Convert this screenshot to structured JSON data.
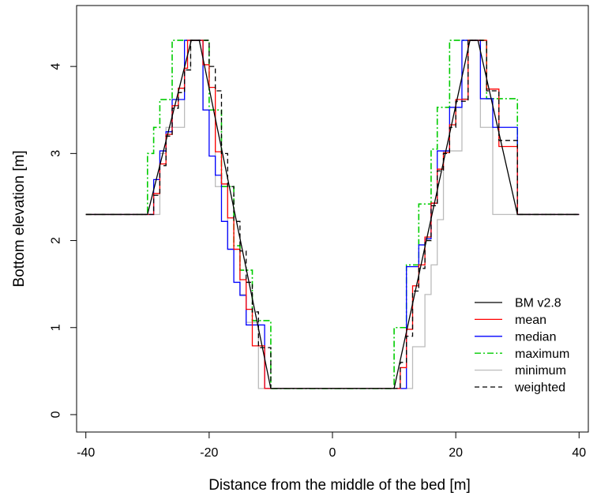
{
  "chart_data": {
    "type": "line",
    "title": "",
    "xlabel": "Distance from the middle of the bed [m]",
    "ylabel": "Bottom elevation  [m]",
    "xlim": [
      -41.5,
      41.5
    ],
    "ylim": [
      -0.2,
      4.7
    ],
    "x_ticks": [
      -40,
      -20,
      0,
      20,
      40
    ],
    "y_ticks": [
      0,
      1,
      2,
      3,
      4
    ],
    "x_tick_labels": [
      "-40",
      "-20",
      "0",
      "20",
      "40"
    ],
    "y_tick_labels": [
      "0",
      "1",
      "2",
      "3",
      "4"
    ],
    "grid": false,
    "legend_position": "bottom-right",
    "series": [
      {
        "name": "BM v2.8",
        "color": "#000000",
        "dash": "solid",
        "step": false,
        "x": [
          -40,
          -30,
          -22.9,
          -21.6,
          -10,
          10,
          22.3,
          23.6,
          30,
          40
        ],
        "y": [
          2.3,
          2.3,
          4.3,
          4.3,
          0.3,
          0.3,
          4.3,
          4.3,
          2.3,
          2.3
        ]
      },
      {
        "name": "mean",
        "color": "#ff0000",
        "dash": "solid",
        "step": true,
        "x": [
          -40,
          -30,
          -29,
          -28,
          -27,
          -26,
          -25,
          -24,
          -23.5,
          -22,
          -21.5,
          -21,
          -20,
          -19,
          -18,
          -17,
          -16,
          -15,
          -14,
          -13,
          -12,
          -11,
          -10,
          10,
          11,
          12,
          13,
          14,
          15,
          16,
          17,
          18,
          19,
          20,
          21,
          22,
          23,
          24,
          25,
          26,
          27,
          28,
          30,
          40
        ],
        "y": [
          2.3,
          2.3,
          2.54,
          2.88,
          3.22,
          3.55,
          3.75,
          3.98,
          4.3,
          4.3,
          4.3,
          4.02,
          3.76,
          3.02,
          2.65,
          2.26,
          1.9,
          1.55,
          1.21,
          0.79,
          0.79,
          0.3,
          0.3,
          0.3,
          0.54,
          0.98,
          1.48,
          1.72,
          2.04,
          2.43,
          2.82,
          3.01,
          3.33,
          3.62,
          3.62,
          4.3,
          4.3,
          4.3,
          3.74,
          3.74,
          3.08,
          3.08,
          2.3,
          2.3
        ]
      },
      {
        "name": "median",
        "color": "#0000ff",
        "dash": "solid",
        "step": true,
        "x": [
          -40,
          -30,
          -29,
          -28,
          -27,
          -26,
          -25,
          -24,
          -23,
          -22,
          -21,
          -20,
          -19,
          -18,
          -17,
          -16,
          -15,
          -14,
          -13,
          -12,
          -11,
          -10,
          10,
          11,
          12,
          13,
          14,
          15,
          16,
          17,
          18,
          19,
          20,
          21,
          22,
          23,
          24,
          25,
          26,
          27,
          28,
          30,
          40
        ],
        "y": [
          2.3,
          2.3,
          2.7,
          3.03,
          3.25,
          3.62,
          3.62,
          4.3,
          4.3,
          4.3,
          3.5,
          2.97,
          2.75,
          2.22,
          1.9,
          1.52,
          1.37,
          1.03,
          1.03,
          1.03,
          0.3,
          0.3,
          0.3,
          0.3,
          1.7,
          1.7,
          1.95,
          2.02,
          2.43,
          3.03,
          3.03,
          3.53,
          3.53,
          4.3,
          4.3,
          4.3,
          3.63,
          3.63,
          3.3,
          3.3,
          3.3,
          2.3,
          2.3
        ]
      },
      {
        "name": "maximum",
        "color": "#00cc00",
        "dash": "dashdot",
        "step": true,
        "x": [
          -40,
          -30,
          -29,
          -28,
          -27,
          -26,
          -25,
          -24,
          -23,
          -22,
          -21,
          -20,
          -19,
          -18,
          -17,
          -16,
          -15,
          -14,
          -13,
          -12,
          -11,
          -10,
          10,
          11,
          12,
          13,
          14,
          15,
          16,
          17,
          18,
          19,
          20,
          21,
          22,
          23,
          24,
          25,
          26,
          27,
          28,
          30,
          40
        ],
        "y": [
          2.3,
          3.0,
          3.3,
          3.62,
          3.62,
          4.3,
          4.3,
          4.3,
          4.3,
          4.3,
          4.3,
          3.5,
          3.5,
          2.62,
          2.62,
          1.94,
          1.66,
          1.66,
          1.08,
          1.08,
          1.08,
          0.3,
          1.0,
          1.0,
          1.72,
          1.72,
          2.42,
          2.42,
          3.05,
          3.53,
          3.53,
          4.3,
          4.3,
          4.3,
          4.3,
          4.3,
          4.3,
          3.63,
          3.63,
          3.63,
          3.63,
          2.3,
          2.3
        ]
      },
      {
        "name": "minimum",
        "color": "#bbbbbb",
        "dash": "solid",
        "step": true,
        "x": [
          -40,
          -30,
          -29,
          -28,
          -27,
          -26,
          -25,
          -24,
          -23,
          -22,
          -21,
          -20,
          -19,
          -18,
          -17,
          -16,
          -15,
          -14,
          -13,
          -12,
          -11,
          -10,
          10,
          11,
          12,
          13,
          14,
          15,
          16,
          17,
          18,
          19,
          20,
          21,
          22,
          23,
          24,
          25,
          26,
          27,
          28,
          30,
          40
        ],
        "y": [
          2.3,
          2.3,
          2.3,
          3.0,
          3.3,
          3.3,
          3.3,
          3.96,
          4.3,
          4.3,
          3.5,
          3.5,
          2.62,
          2.62,
          1.9,
          1.9,
          1.38,
          1.06,
          1.06,
          0.3,
          0.3,
          0.3,
          0.3,
          0.3,
          0.3,
          0.78,
          0.78,
          1.38,
          1.72,
          2.24,
          3.03,
          3.03,
          3.03,
          3.63,
          4.3,
          4.3,
          3.3,
          3.3,
          2.3,
          2.3,
          2.3,
          2.3,
          2.3
        ]
      },
      {
        "name": "weighted",
        "color": "#000000",
        "dash": "dashed",
        "step": true,
        "x": [
          -40,
          -30,
          -29,
          -28,
          -27,
          -26,
          -25,
          -24,
          -23,
          -22,
          -21,
          -20,
          -19,
          -18,
          -17,
          -16,
          -15,
          -14,
          -13,
          -12,
          -11,
          -10,
          10,
          11,
          12,
          13,
          14,
          15,
          16,
          17,
          18,
          19,
          20,
          21,
          22,
          23,
          24,
          25,
          26,
          27,
          28,
          30,
          40
        ],
        "y": [
          2.3,
          2.3,
          2.52,
          2.86,
          3.2,
          3.52,
          3.7,
          3.96,
          4.3,
          4.3,
          4.3,
          4.0,
          3.72,
          3.0,
          2.62,
          2.22,
          1.88,
          1.52,
          1.18,
          0.77,
          0.77,
          0.3,
          0.3,
          0.6,
          0.9,
          1.42,
          1.68,
          2.0,
          2.4,
          2.8,
          3.0,
          3.3,
          3.6,
          3.6,
          4.3,
          4.3,
          4.3,
          3.72,
          3.72,
          3.15,
          3.15,
          2.3,
          2.3
        ]
      }
    ]
  }
}
